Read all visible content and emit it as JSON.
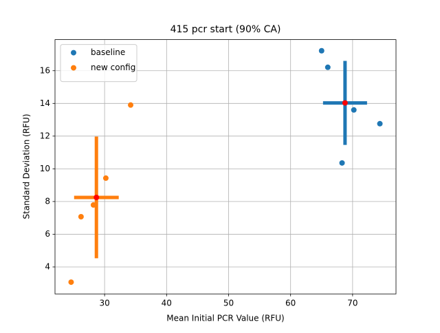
{
  "chart_data": {
    "type": "scatter",
    "title": "415 pcr start (90% CA)",
    "x_label": "Mean Initial PCR Value (RFU)",
    "y_label": "Standard Deviation (RFU)",
    "xlim": [
      22.0,
      77.0
    ],
    "ylim": [
      2.35,
      17.9
    ],
    "xticks": [
      30,
      40,
      50,
      60,
      70
    ],
    "yticks": [
      4,
      6,
      8,
      10,
      12,
      14,
      16
    ],
    "grid": true,
    "legend": "upper left",
    "mean_color": "red",
    "series": [
      {
        "name": "baseline",
        "color": "#1f77b4",
        "x": [
          65.0,
          66.0,
          70.2,
          74.4,
          68.3
        ],
        "values": [
          17.22,
          16.21,
          13.6,
          12.76,
          10.36
        ],
        "mean_x": 68.78,
        "mean_y": 14.03,
        "xerr": 3.55,
        "yerr": 2.57
      },
      {
        "name": "new config",
        "color": "#ff7f0e",
        "x": [
          34.2,
          30.2,
          28.2,
          26.2,
          24.6
        ],
        "values": [
          13.9,
          9.43,
          7.79,
          7.07,
          3.07
        ],
        "mean_x": 28.68,
        "mean_y": 8.25,
        "xerr": 3.6,
        "yerr": 3.72
      }
    ]
  }
}
